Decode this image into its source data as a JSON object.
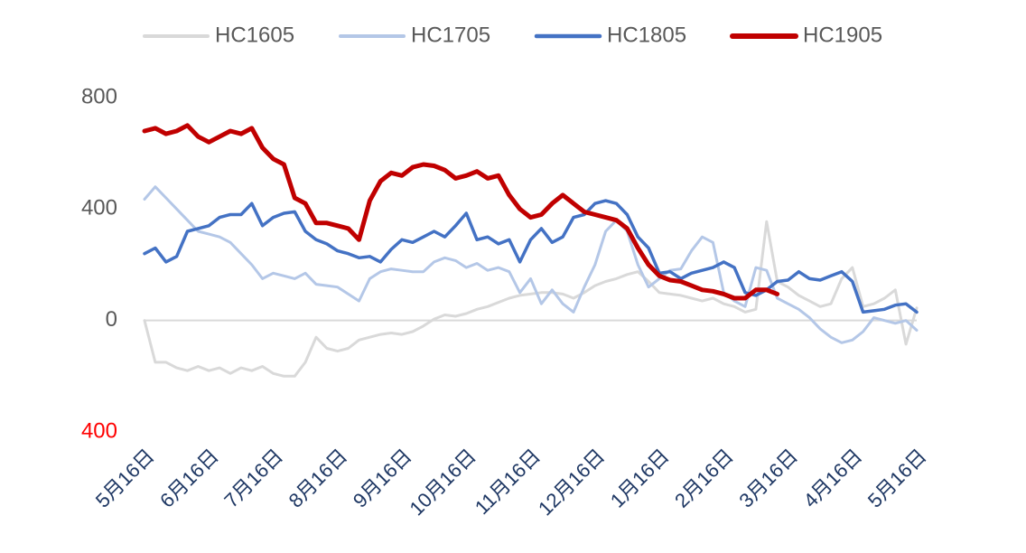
{
  "chart_data": {
    "type": "line",
    "categories": [
      "5月16日",
      null,
      null,
      null,
      null,
      null,
      "6月16日",
      null,
      null,
      null,
      null,
      null,
      "7月16日",
      null,
      null,
      null,
      null,
      null,
      "8月16日",
      null,
      null,
      null,
      null,
      null,
      "9月16日",
      null,
      null,
      null,
      null,
      null,
      "10月16日",
      null,
      null,
      null,
      null,
      null,
      "11月16日",
      null,
      null,
      null,
      null,
      null,
      "12月16日",
      null,
      null,
      null,
      null,
      null,
      "1月16日",
      null,
      null,
      null,
      null,
      null,
      "2月16日",
      null,
      null,
      null,
      null,
      null,
      "3月16日",
      null,
      null,
      null,
      null,
      null,
      "4月16日",
      null,
      null,
      null,
      null,
      null,
      "5月16日"
    ],
    "series": [
      {
        "name": "HC1605",
        "color": "#d9d9d9",
        "width": 3,
        "values": [
          0,
          -150,
          -150,
          -170,
          -180,
          -165,
          -180,
          -170,
          -190,
          -170,
          -180,
          -165,
          -190,
          -200,
          -200,
          -150,
          -60,
          -100,
          -110,
          -100,
          -70,
          -60,
          -50,
          -45,
          -50,
          -40,
          -20,
          5,
          20,
          15,
          25,
          40,
          50,
          65,
          80,
          90,
          95,
          100,
          100,
          95,
          80,
          100,
          125,
          140,
          150,
          165,
          175,
          140,
          100,
          95,
          90,
          80,
          70,
          80,
          60,
          50,
          30,
          40,
          355,
          140,
          120,
          90,
          70,
          50,
          60,
          150,
          190,
          50,
          60,
          80,
          110,
          -85,
          45
        ]
      },
      {
        "name": "HC1705",
        "color": "#b4c7e7",
        "width": 3,
        "values": [
          435,
          480,
          440,
          400,
          360,
          320,
          310,
          300,
          280,
          240,
          200,
          150,
          170,
          160,
          150,
          170,
          130,
          125,
          120,
          95,
          70,
          150,
          175,
          185,
          180,
          175,
          175,
          210,
          225,
          215,
          190,
          205,
          180,
          190,
          175,
          100,
          150,
          60,
          110,
          60,
          30,
          120,
          200,
          320,
          360,
          320,
          200,
          120,
          150,
          180,
          185,
          250,
          300,
          280,
          100,
          70,
          50,
          190,
          180,
          80,
          60,
          40,
          10,
          -30,
          -60,
          -80,
          -70,
          -40,
          10,
          0,
          -10,
          0,
          -35
        ]
      },
      {
        "name": "HC1805",
        "color": "#4472c4",
        "width": 3.5,
        "values": [
          240,
          260,
          210,
          230,
          320,
          330,
          340,
          370,
          380,
          380,
          420,
          340,
          370,
          385,
          390,
          320,
          290,
          275,
          250,
          240,
          225,
          230,
          210,
          255,
          290,
          280,
          300,
          320,
          300,
          340,
          385,
          290,
          300,
          275,
          290,
          210,
          290,
          330,
          280,
          300,
          370,
          380,
          420,
          430,
          420,
          380,
          300,
          260,
          170,
          175,
          150,
          170,
          180,
          190,
          210,
          190,
          100,
          90,
          110,
          140,
          145,
          175,
          150,
          145,
          160,
          175,
          140,
          30,
          35,
          40,
          55,
          60,
          30
        ]
      },
      {
        "name": "HC1905",
        "color": "#c00000",
        "width": 5,
        "values": [
          680,
          690,
          670,
          680,
          700,
          660,
          640,
          660,
          680,
          670,
          690,
          620,
          580,
          560,
          440,
          420,
          350,
          350,
          340,
          330,
          290,
          430,
          500,
          530,
          520,
          550,
          560,
          555,
          540,
          510,
          520,
          535,
          510,
          520,
          450,
          400,
          370,
          380,
          420,
          450,
          420,
          390,
          380,
          370,
          360,
          330,
          260,
          200,
          160,
          145,
          140,
          125,
          110,
          105,
          95,
          80,
          80,
          110,
          110,
          95,
          null,
          null,
          null,
          null,
          null,
          null,
          null,
          null,
          null,
          null,
          null,
          null,
          null
        ]
      }
    ],
    "ylim": [
      -400,
      800
    ],
    "yticks": [
      {
        "value": -400,
        "label": "400"
      },
      0,
      400,
      800
    ],
    "negative_tick_color": "#ff0000",
    "zero_line_color": "#d9d9d9",
    "legend": "top"
  }
}
